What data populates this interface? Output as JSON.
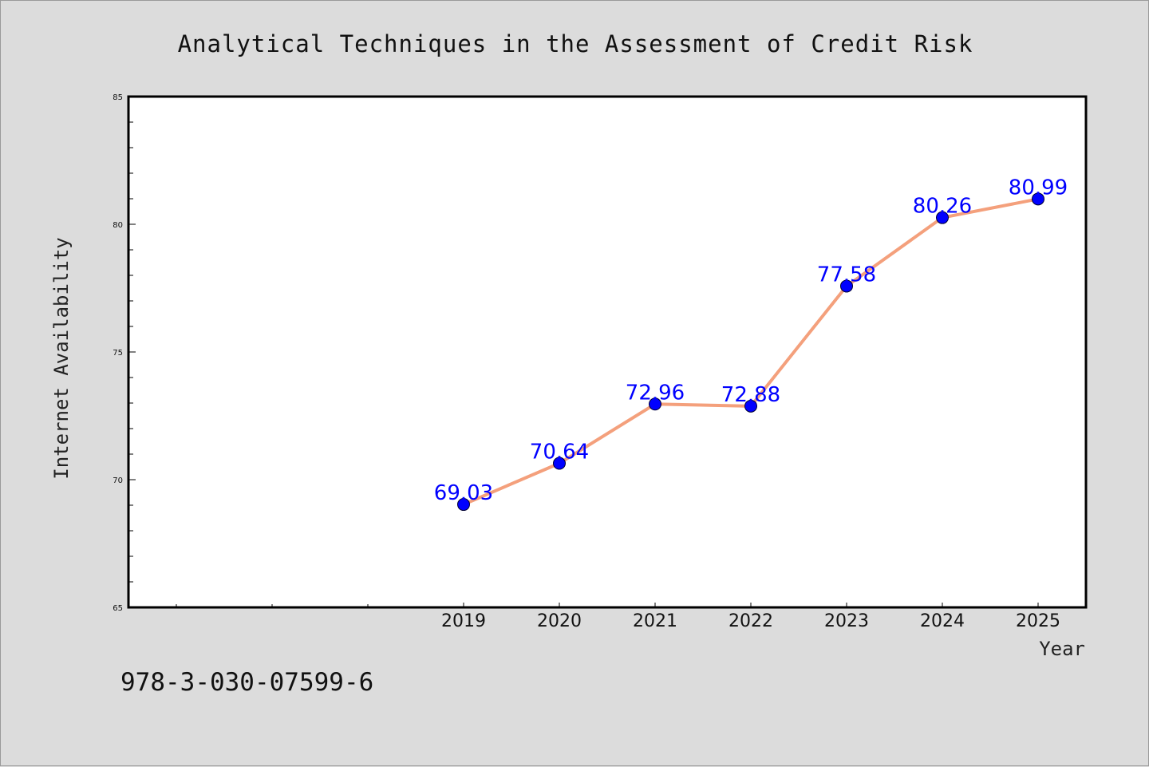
{
  "chart_data": {
    "type": "line",
    "title": "Analytical Techniques in the Assessment of Credit Risk",
    "xlabel": "Year",
    "ylabel": "Internet Availability",
    "ylim": [
      65,
      85
    ],
    "yticks": [
      65,
      70,
      75,
      80,
      85
    ],
    "x": [
      "2019",
      "2020",
      "2021",
      "2022",
      "2023",
      "2024",
      "2025"
    ],
    "series": [
      {
        "values": [
          69.03,
          70.64,
          72.96,
          72.88,
          77.58,
          80.26,
          80.99
        ],
        "labels": [
          "69.03",
          "70.64",
          "72.96",
          "72.88",
          "77.58",
          "80.26",
          "80.99"
        ],
        "line_color": "#f4a07c",
        "marker_color": "#0000ff"
      }
    ],
    "grid": false,
    "legend": "none"
  },
  "footer": {
    "isbn": "978-3-030-07599-6"
  }
}
